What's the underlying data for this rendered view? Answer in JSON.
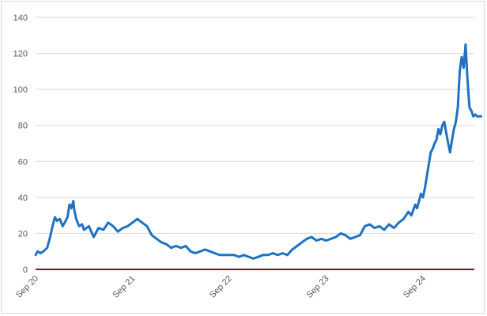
{
  "chart_data": {
    "type": "line",
    "title": "",
    "xlabel": "",
    "ylabel": "",
    "ylim": [
      0,
      140
    ],
    "yticks": [
      0,
      20,
      40,
      60,
      80,
      100,
      120,
      140
    ],
    "xticks": [
      "Sep 20",
      "Sep 21",
      "Sep 22",
      "Sep 23",
      "Sep 24"
    ],
    "xlim": [
      0,
      4.6
    ],
    "grid": true,
    "legend": "none",
    "colors": {
      "series": "#1f72c2",
      "baseline": "#7b1424",
      "grid": "#d9d9d9",
      "axis_text": "#595959"
    },
    "baseline_value": 0,
    "series": [
      {
        "x": [
          0,
          0.02,
          0.05,
          0.08,
          0.12,
          0.15,
          0.18,
          0.2,
          0.22,
          0.25,
          0.28,
          0.3,
          0.33,
          0.35,
          0.37,
          0.39,
          0.4,
          0.42,
          0.45,
          0.48,
          0.5,
          0.55,
          0.6,
          0.65,
          0.7,
          0.75,
          0.8,
          0.85,
          0.9,
          0.95,
          1.0,
          1.05,
          1.1,
          1.15,
          1.2,
          1.25,
          1.3,
          1.35,
          1.4,
          1.45,
          1.5,
          1.55,
          1.6,
          1.65,
          1.7,
          1.75,
          1.8,
          1.85,
          1.9,
          1.95,
          2.0,
          2.05,
          2.1,
          2.15,
          2.2,
          2.25,
          2.3,
          2.35,
          2.4,
          2.45,
          2.5,
          2.55,
          2.6,
          2.65,
          2.7,
          2.75,
          2.8,
          2.85,
          2.9,
          2.95,
          3.0,
          3.05,
          3.1,
          3.15,
          3.2,
          3.25,
          3.3,
          3.35,
          3.4,
          3.45,
          3.5,
          3.55,
          3.6,
          3.65,
          3.7,
          3.75,
          3.8,
          3.85,
          3.88,
          3.9,
          3.92,
          3.94,
          3.96,
          3.98,
          4.0,
          4.02,
          4.05,
          4.08,
          4.1,
          4.12,
          4.14,
          4.16,
          4.18,
          4.2,
          4.22,
          4.24,
          4.26,
          4.28,
          4.3,
          4.32,
          4.34,
          4.36,
          4.38,
          4.4,
          4.42,
          4.44,
          4.46,
          4.48,
          4.5,
          4.52,
          4.54,
          4.56,
          4.58,
          4.6
        ],
        "values": [
          8,
          10,
          9,
          10,
          12,
          18,
          25,
          29,
          27,
          28,
          24,
          26,
          29,
          36,
          34,
          38,
          33,
          28,
          24,
          25,
          22,
          24,
          18,
          23,
          22,
          26,
          24,
          21,
          23,
          24,
          26,
          28,
          26,
          24,
          19,
          17,
          15,
          14,
          12,
          13,
          12,
          13,
          10,
          9,
          10,
          11,
          10,
          9,
          8,
          8,
          8,
          8,
          7,
          8,
          7,
          6,
          7,
          8,
          8,
          9,
          8,
          9,
          8,
          11,
          13,
          15,
          17,
          18,
          16,
          17,
          16,
          17,
          18,
          20,
          19,
          17,
          18,
          19,
          24,
          25,
          23,
          24,
          22,
          25,
          23,
          26,
          28,
          32,
          30,
          33,
          36,
          34,
          38,
          42,
          40,
          45,
          55,
          65,
          67,
          70,
          72,
          78,
          75,
          80,
          82,
          76,
          70,
          65,
          72,
          78,
          82,
          90,
          110,
          118,
          112,
          125,
          105,
          90,
          88,
          85,
          86,
          85,
          85,
          85
        ]
      }
    ]
  }
}
